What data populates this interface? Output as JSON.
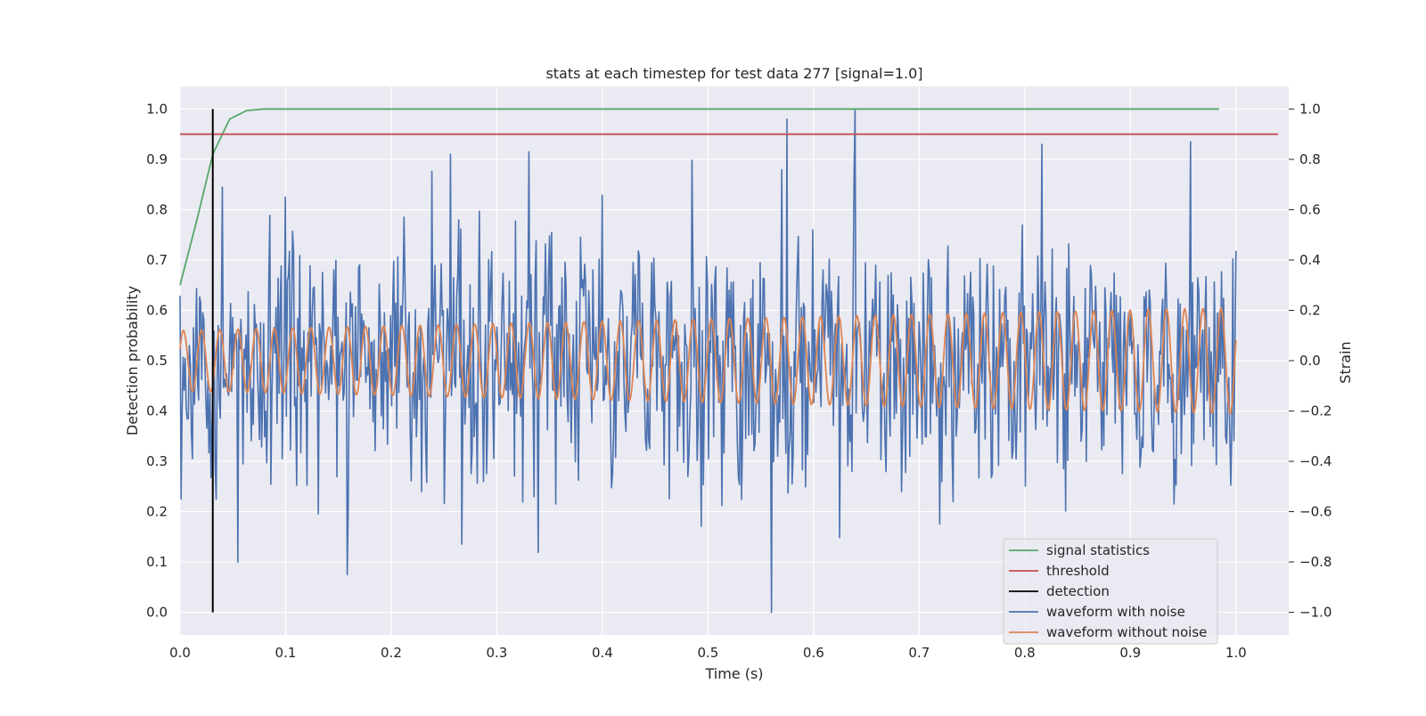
{
  "chart_data": {
    "type": "line",
    "title": "stats at each timestep for test data 277 [signal=1.0]",
    "xlabel": "Time (s)",
    "ylabel_left": "Detection probability",
    "ylabel_right": "Strain",
    "xlim": [
      0.0,
      1.05
    ],
    "ylim_left": [
      -0.045,
      1.045
    ],
    "ylim_right": [
      -1.09,
      1.09
    ],
    "x_ticks": [
      "0.0",
      "0.1",
      "0.2",
      "0.3",
      "0.4",
      "0.5",
      "0.6",
      "0.7",
      "0.8",
      "0.9",
      "1.0"
    ],
    "y_ticks_left": [
      "0.0",
      "0.1",
      "0.2",
      "0.3",
      "0.4",
      "0.5",
      "0.6",
      "0.7",
      "0.8",
      "0.9",
      "1.0"
    ],
    "y_ticks_right": [
      "−1.0",
      "−0.8",
      "−0.6",
      "−0.4",
      "−0.2",
      "0.0",
      "0.2",
      "0.4",
      "0.6",
      "0.8",
      "1.0"
    ],
    "grid": true,
    "legend_position": "lower-right",
    "colors": {
      "background": "#eaeaf2",
      "grid": "#ffffff",
      "signal_statistics": "#55a868",
      "threshold": "#c44e52",
      "detection": "#000000",
      "waveform_with_noise": "#4c72b0",
      "waveform_without_noise": "#dd8452"
    },
    "signal_statistics": {
      "name": "signal statistics",
      "x": [
        0.0,
        0.016,
        0.031,
        0.047,
        0.063,
        0.079,
        0.1,
        0.2,
        0.4,
        0.6,
        0.8,
        0.984
      ],
      "y": [
        0.65,
        0.78,
        0.91,
        0.98,
        0.997,
        1.0,
        1.0,
        1.0,
        1.0,
        1.0,
        1.0,
        1.0
      ]
    },
    "threshold": {
      "name": "threshold",
      "value": 0.95,
      "x_range": [
        0.0,
        1.04
      ]
    },
    "detection": {
      "name": "detection",
      "x": 0.031,
      "y_range": [
        0.0,
        1.0
      ]
    },
    "waveform_with_noise": {
      "name": "waveform with noise",
      "x_range": [
        0.0,
        1.0
      ],
      "samples": 1024,
      "approx_std": 0.25,
      "peaks": [
        {
          "x": 0.001,
          "y": -0.55
        },
        {
          "x": 0.034,
          "y": -0.55
        },
        {
          "x": 0.04,
          "y": 0.69
        },
        {
          "x": 0.055,
          "y": -0.8
        },
        {
          "x": 0.1,
          "y": 0.65
        },
        {
          "x": 0.158,
          "y": -0.85
        },
        {
          "x": 0.256,
          "y": 0.82
        },
        {
          "x": 0.33,
          "y": 0.83
        },
        {
          "x": 0.56,
          "y": -1.0
        },
        {
          "x": 0.575,
          "y": 0.96
        },
        {
          "x": 0.639,
          "y": 1.0
        },
        {
          "x": 0.957,
          "y": 0.87
        }
      ]
    },
    "waveform_without_noise": {
      "name": "waveform without noise",
      "x_range": [
        0.0,
        1.0
      ],
      "frequency_hz": 58,
      "amplitude_start": 0.12,
      "amplitude_end": 0.21
    }
  }
}
